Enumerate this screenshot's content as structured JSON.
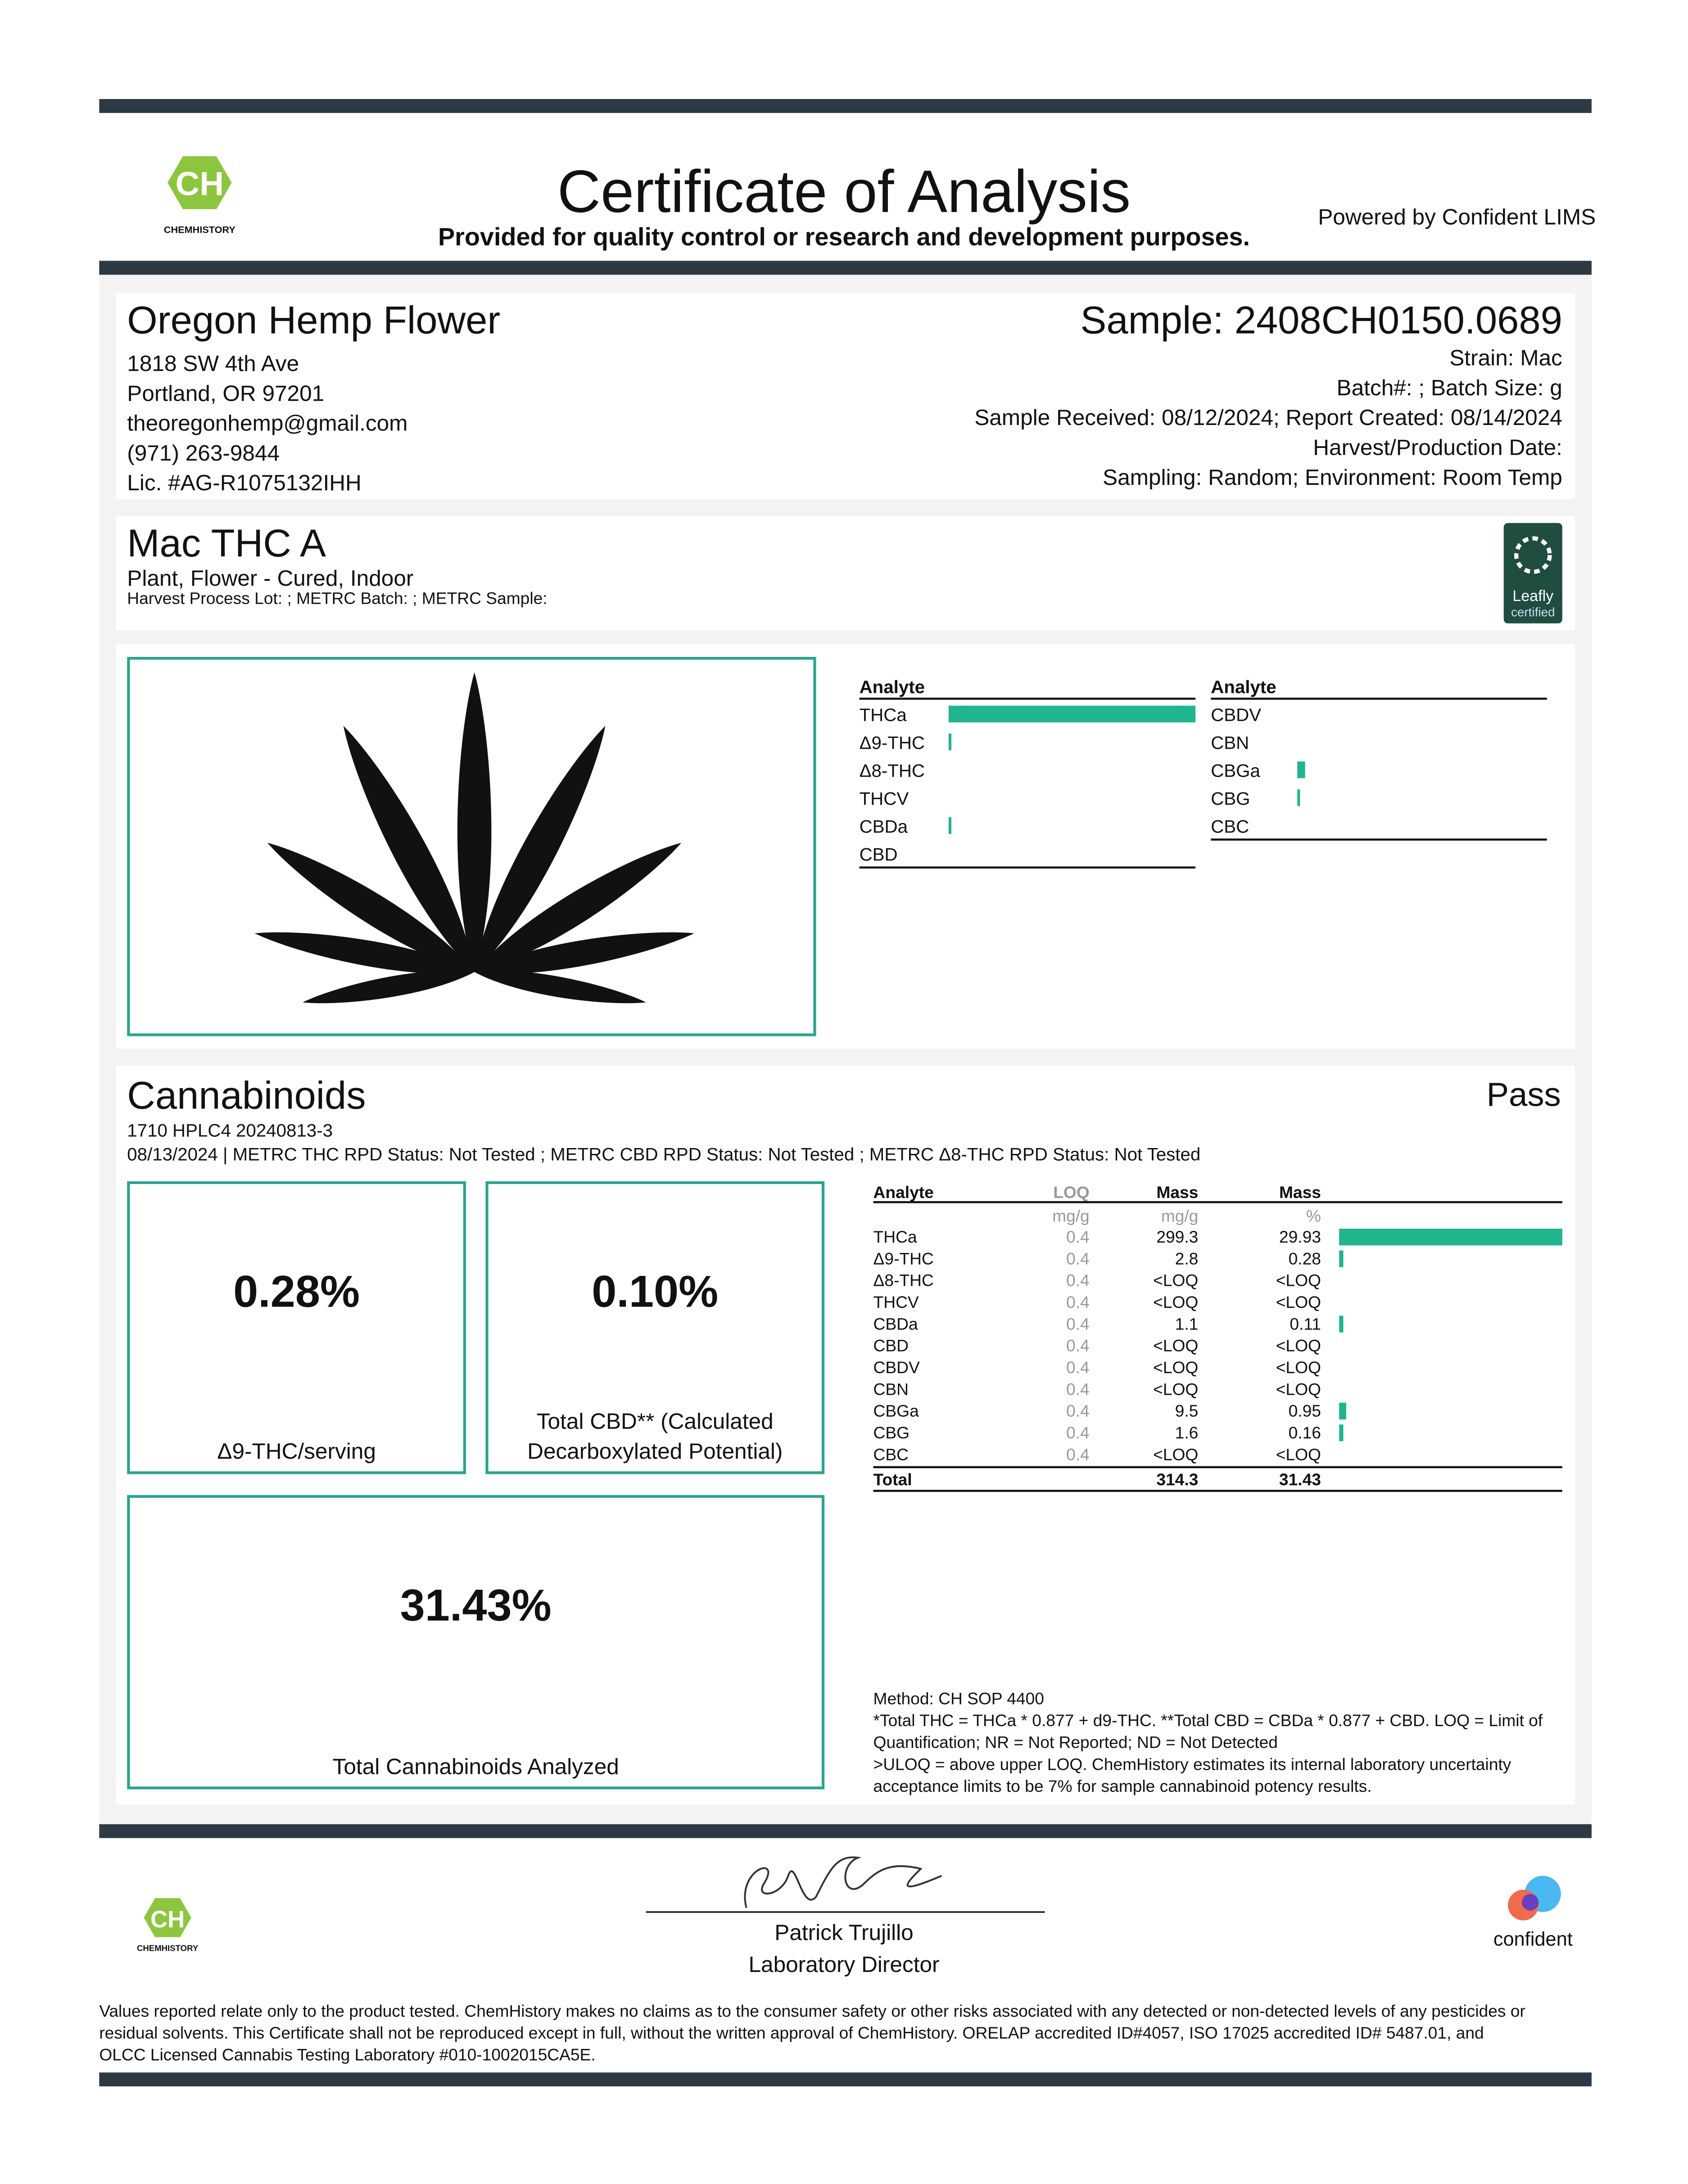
{
  "header": {
    "title": "Certificate of Analysis",
    "subtitle": "Provided for quality control or research and development purposes.",
    "powered_by": "Powered by Confident LIMS",
    "logo_text": "CHEMHISTORY"
  },
  "client": {
    "name": "Oregon Hemp Flower",
    "lines": [
      "1818 SW 4th Ave",
      "Portland, OR 97201",
      "theoregonhemp@gmail.com",
      "(971) 263-9844",
      "Lic. #AG-R1075132IHH"
    ]
  },
  "sample": {
    "id": "Sample: 2408CH0150.0689",
    "lines": [
      "Strain: Mac",
      "Batch#: ; Batch Size:  g",
      "Sample Received: 08/12/2024; Report Created: 08/14/2024",
      "Harvest/Production Date: ",
      "Sampling: Random; Environment: Room Temp"
    ]
  },
  "product": {
    "name": "Mac THC A",
    "category": "Plant, Flower - Cured, Indoor",
    "metrc": "Harvest Process Lot: ; METRC Batch: ; METRC Sample:",
    "badge": [
      "Leafly",
      "certified"
    ]
  },
  "cannabinoids": {
    "title": "Cannabinoids",
    "result": "Pass",
    "run": "1710 HPLC4 20240813-3",
    "status": "08/13/2024 | METRC THC RPD Status: Not Tested ; METRC CBD RPD Status: Not Tested ; METRC Δ8-THC RPD Status: Not Tested",
    "summary": [
      {
        "value": "0.28%",
        "label": [
          "Δ9-THC/serving"
        ]
      },
      {
        "value": "0.10%",
        "label": [
          "Total CBD** (Calculated",
          "Decarboxylated Potential)"
        ]
      },
      {
        "value": "31.43%",
        "label": [
          "Total Cannabinoids Analyzed"
        ]
      }
    ],
    "table": {
      "columns": [
        "Analyte",
        "LOQ",
        "Mass",
        "Mass"
      ],
      "units": [
        "mg/g",
        "mg/g",
        "%"
      ],
      "rows": [
        [
          "THCa",
          0.4,
          299.3,
          29.93
        ],
        [
          "Δ9-THC",
          0.4,
          2.8,
          0.28
        ],
        [
          "Δ8-THC",
          0.4,
          "<LOQ",
          "<LOQ"
        ],
        [
          "THCV",
          0.4,
          "<LOQ",
          "<LOQ"
        ],
        [
          "CBDa",
          0.4,
          1.1,
          0.11
        ],
        [
          "CBD",
          0.4,
          "<LOQ",
          "<LOQ"
        ],
        [
          "CBDV",
          0.4,
          "<LOQ",
          "<LOQ"
        ],
        [
          "CBN",
          0.4,
          "<LOQ",
          "<LOQ"
        ],
        [
          "CBGa",
          0.4,
          9.5,
          0.95
        ],
        [
          "CBG",
          0.4,
          1.6,
          0.16
        ],
        [
          "CBC",
          0.4,
          "<LOQ",
          "<LOQ"
        ]
      ],
      "total": [
        "Total",
        314.3,
        31.43
      ]
    },
    "notes": [
      "Method: CH SOP 4400",
      "*Total THC = THCa * 0.877 + d9-THC. **Total CBD = CBDa * 0.877 + CBD. LOQ = Limit of",
      "Quantification; NR = Not Reported; ND = Not Detected",
      ">ULOQ = above upper LOQ. ChemHistory estimates its internal laboratory uncertainty",
      "acceptance limits to be 7% for sample cannabinoid potency results."
    ]
  },
  "signature": {
    "name": "Patrick Trujillo",
    "role": "Laboratory Director"
  },
  "footer": {
    "brand": "confident",
    "disclaimer": [
      "Values reported relate only to the product tested. ChemHistory makes no claims as to the consumer safety or other risks associated with any detected or non-detected levels of any pesticides or",
      "residual solvents. This Certificate shall not be reproduced except in full, without the written approval of ChemHistory.  ORELAP accredited ID#4057, ISO 17025 accredited ID# 5487.01, and",
      "OLCC Licensed Cannabis Testing Laboratory #010-1002015CA5E."
    ]
  }
}
